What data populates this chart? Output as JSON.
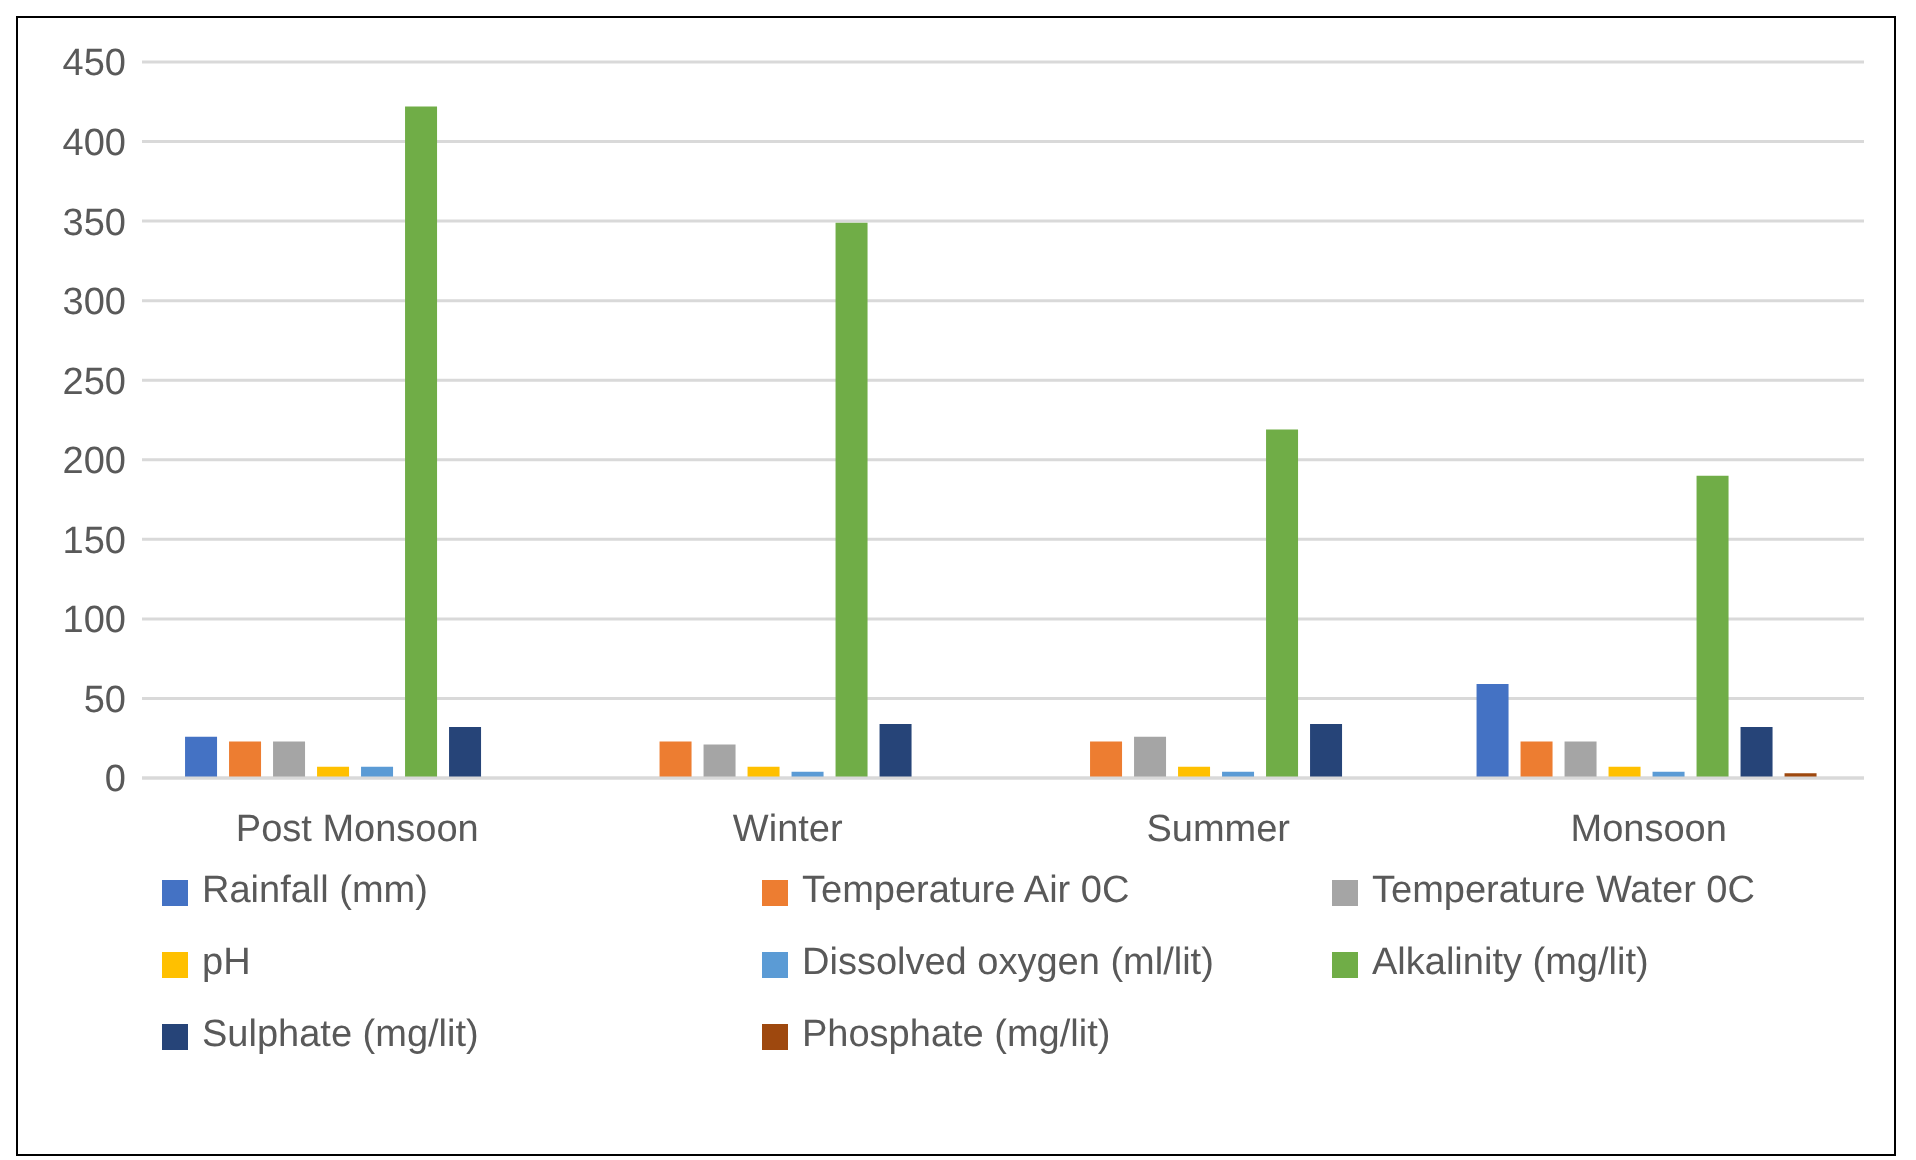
{
  "chart_data": {
    "type": "bar",
    "categories": [
      "Post Monsoon",
      "Winter",
      "Summer",
      "Monsoon"
    ],
    "series": [
      {
        "name": "Rainfall (mm)",
        "color": "#4472c4",
        "values": [
          26,
          0,
          0,
          59
        ]
      },
      {
        "name": "Temperature Air 0C",
        "color": "#ed7d31",
        "values": [
          23,
          23,
          23,
          23
        ]
      },
      {
        "name": "Temperature Water 0C",
        "color": "#a5a5a5",
        "values": [
          23,
          21,
          26,
          23
        ]
      },
      {
        "name": "pH",
        "color": "#ffc000",
        "values": [
          7,
          7,
          7,
          7
        ]
      },
      {
        "name": "Dissolved oxygen (ml/lit)",
        "color": "#5b9bd5",
        "values": [
          7,
          4,
          4,
          4
        ]
      },
      {
        "name": "Alkalinity (mg/lit)",
        "color": "#70ad47",
        "values": [
          422,
          349,
          219,
          190
        ]
      },
      {
        "name": "Sulphate (mg/lit)",
        "color": "#264478",
        "values": [
          32,
          34,
          34,
          32
        ]
      },
      {
        "name": "Phosphate (mg/lit)",
        "color": "#9e480e",
        "values": [
          null,
          null,
          null,
          3
        ]
      }
    ],
    "ylim": [
      0,
      450
    ],
    "yticks": [
      0,
      50,
      100,
      150,
      200,
      250,
      300,
      350,
      400,
      450
    ],
    "grid": "y",
    "legend": "bottom"
  }
}
